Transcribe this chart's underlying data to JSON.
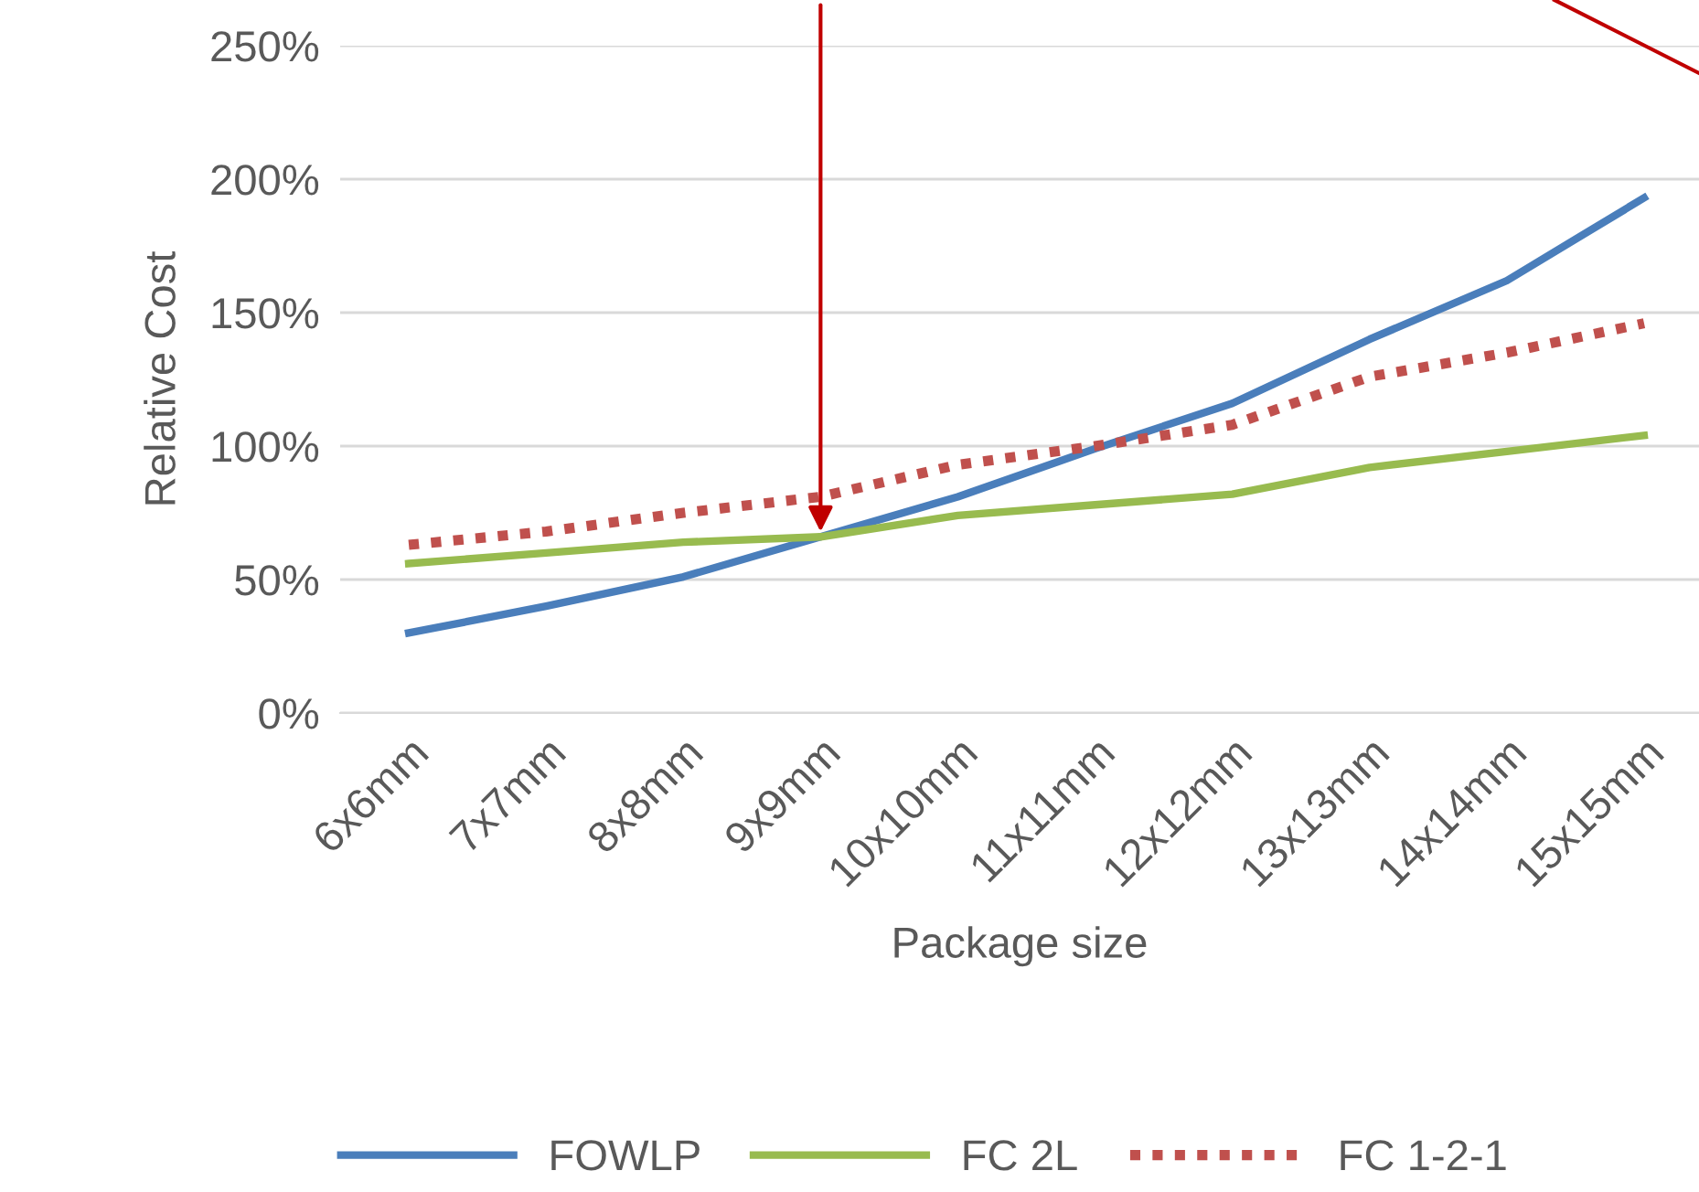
{
  "chart_data": {
    "type": "line",
    "xlabel": "Package size",
    "ylabel": "Relative Cost",
    "categories": [
      "6x6mm",
      "7x7mm",
      "8x8mm",
      "9x9mm",
      "10x10mm",
      "11x11mm",
      "12x12mm",
      "13x13mm",
      "14x14mm",
      "15x15mm"
    ],
    "series": [
      {
        "name": "FOWLP",
        "color": "#4a7ebb",
        "line_style": "solid",
        "values": [
          30,
          40,
          51,
          66,
          81,
          99,
          116,
          140,
          162,
          193
        ]
      },
      {
        "name": "FC 2L",
        "color": "#98bb4f",
        "line_style": "solid",
        "values": [
          56,
          60,
          64,
          66,
          74,
          78,
          82,
          92,
          98,
          104
        ]
      },
      {
        "name": "FC 1-2-1",
        "color": "#c0504d",
        "line_style": "dotted",
        "values": [
          63,
          68,
          75,
          81,
          93,
          100,
          108,
          126,
          135,
          146
        ]
      }
    ],
    "ylim": [
      0,
      250
    ],
    "yticks": [
      {
        "value": 0,
        "label": "0%"
      },
      {
        "value": 50,
        "label": "50%"
      },
      {
        "value": 100,
        "label": "100%"
      },
      {
        "value": 150,
        "label": "150%"
      },
      {
        "value": 200,
        "label": "200%"
      },
      {
        "value": 250,
        "label": "250%"
      }
    ],
    "grid": "y",
    "legend": "bottom",
    "marker": "none"
  }
}
